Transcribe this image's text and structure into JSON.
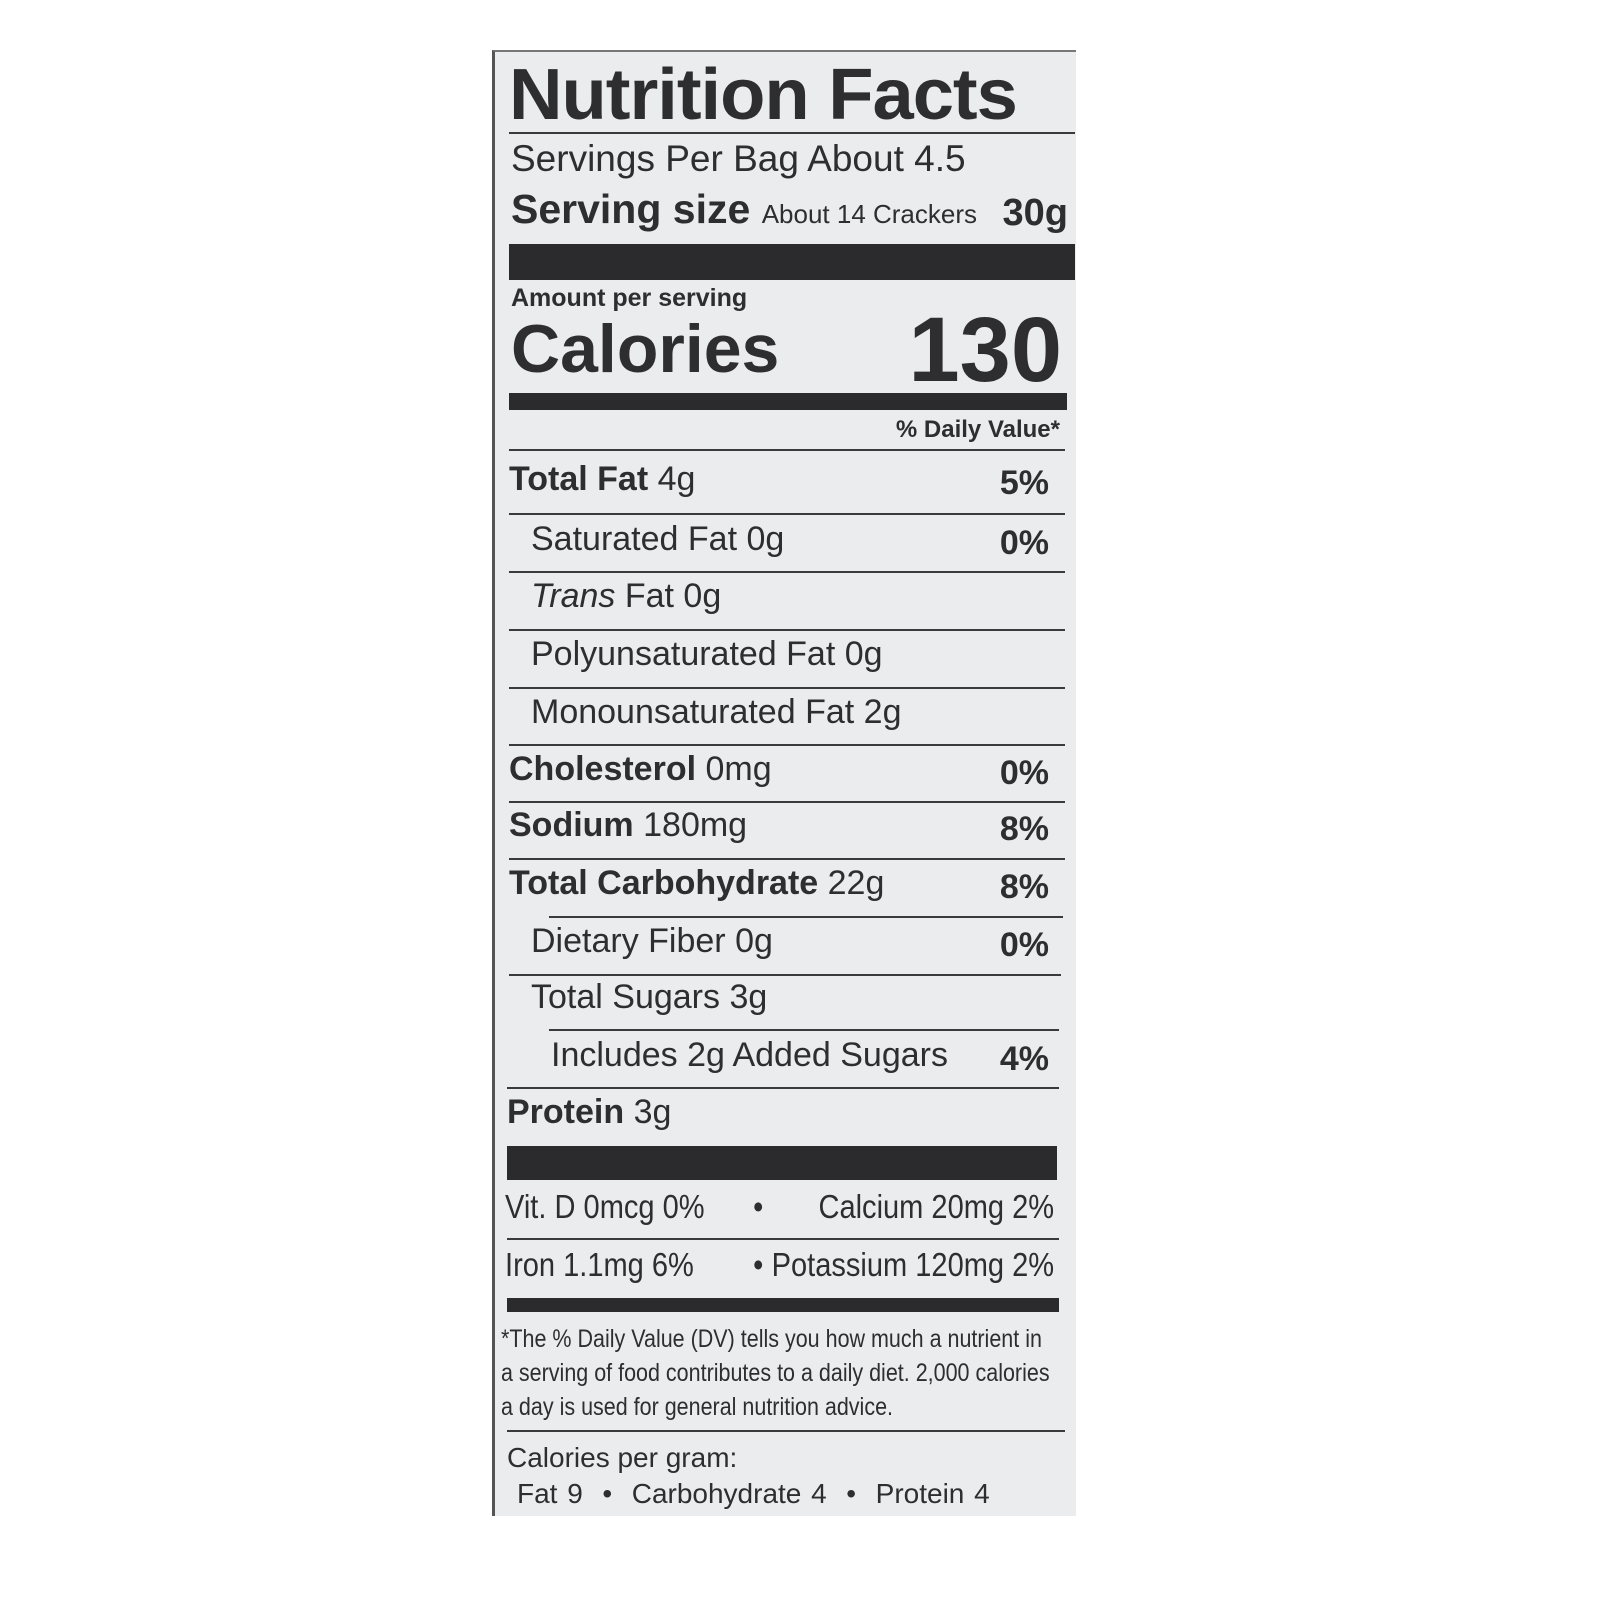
{
  "title": "Nutrition Facts",
  "servings_per": "Servings Per Bag About 4.5",
  "serving_size": {
    "label": "Serving size",
    "desc": "About 14 Crackers",
    "amount": "30g"
  },
  "amount_per_serving": "Amount per serving",
  "calories": {
    "label": "Calories",
    "value": "130"
  },
  "dv_header": "% Daily Value*",
  "nutrients": [
    {
      "name": "Total Fat",
      "amount": "4g",
      "dv": "5%"
    },
    {
      "name": "Saturated Fat",
      "amount": "0g",
      "dv": "0%"
    },
    {
      "name": "Trans",
      "name2": "Fat",
      "amount": "0g",
      "dv": ""
    },
    {
      "name": "Polyunsaturated Fat",
      "amount": "0g",
      "dv": ""
    },
    {
      "name": "Monounsaturated Fat",
      "amount": "2g",
      "dv": ""
    },
    {
      "name": "Cholesterol",
      "amount": "0mg",
      "dv": "0%"
    },
    {
      "name": "Sodium",
      "amount": "180mg",
      "dv": "8%"
    },
    {
      "name": "Total Carbohydrate",
      "amount": "22g",
      "dv": "8%"
    },
    {
      "name": "Dietary Fiber",
      "amount": "0g",
      "dv": "0%"
    },
    {
      "name": "Total Sugars",
      "amount": "3g",
      "dv": ""
    },
    {
      "name": "Includes 2g Added Sugars",
      "amount": "",
      "dv": "4%"
    },
    {
      "name": "Protein",
      "amount": "3g",
      "dv": ""
    }
  ],
  "vitamins": {
    "vit_d": "Vit. D 0mcg 0%",
    "calcium": "Calcium 20mg 2%",
    "iron": "Iron 1.1mg 6%",
    "potassium": "Potassium 120mg 2%",
    "sep": "•"
  },
  "footnote": "*The % Daily Value (DV) tells you how much a nutrient in a serving of food contributes to a daily diet. 2,000 calories a day is used for general nutrition advice.",
  "calories_per_gram": {
    "label": "Calories per gram:",
    "values": "Fat 9  •  Carbohydrate 4  •  Protein 4"
  }
}
